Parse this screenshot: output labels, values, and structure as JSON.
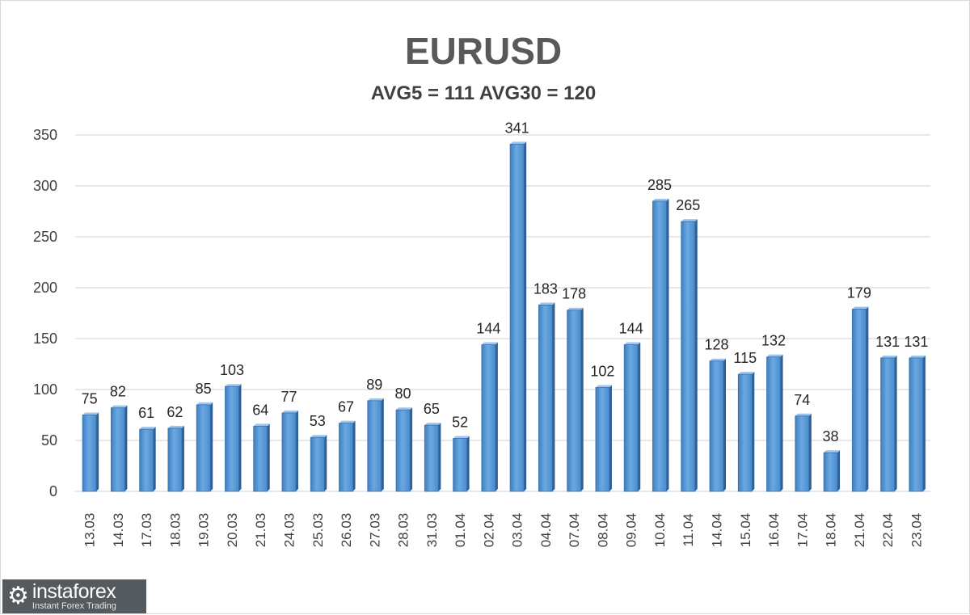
{
  "chart_data": {
    "type": "bar",
    "title": "EURUSD",
    "subtitle": "AVG5 = 111 AVG30 = 120",
    "categories": [
      "13.03",
      "14.03",
      "17.03",
      "18.03",
      "19.03",
      "20.03",
      "21.03",
      "24.03",
      "25.03",
      "26.03",
      "27.03",
      "28.03",
      "31.03",
      "01.04",
      "02.04",
      "03.04",
      "04.04",
      "07.04",
      "08.04",
      "09.04",
      "10.04",
      "11.04",
      "14.04",
      "15.04",
      "16.04",
      "17.04",
      "18.04",
      "21.04",
      "22.04",
      "23.04"
    ],
    "values": [
      75,
      82,
      61,
      62,
      85,
      103,
      64,
      77,
      53,
      67,
      89,
      80,
      65,
      52,
      144,
      341,
      183,
      178,
      102,
      144,
      285,
      265,
      128,
      115,
      132,
      74,
      38,
      179,
      131,
      131
    ],
    "ylim": [
      0,
      350
    ],
    "yticks": [
      0,
      50,
      100,
      150,
      200,
      250,
      300,
      350
    ],
    "grid": true,
    "legend": "none",
    "bar_color": "#5b9bd5"
  },
  "watermark": {
    "brand": "instaforex",
    "tagline": "Instant Forex Trading",
    "icon": "gear-icon"
  }
}
